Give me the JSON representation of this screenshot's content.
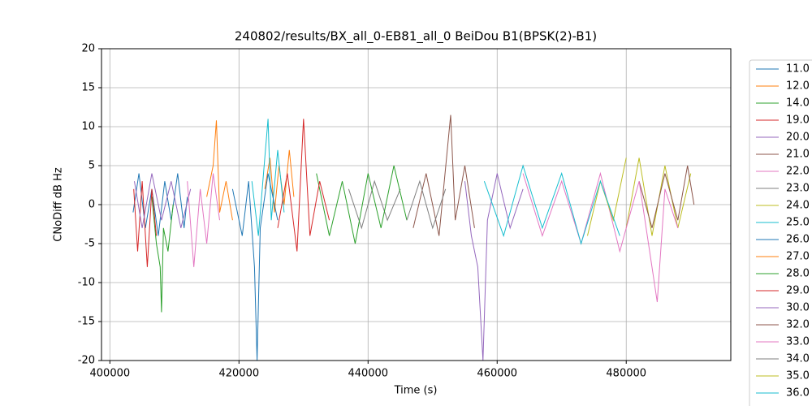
{
  "chart_data": {
    "type": "line",
    "title": "240802/results/BX_all_0-EB81_all_0 BeiDou B1(BPSK(2)-B1)",
    "xlabel": "Time (s)",
    "ylabel": "CNoDiff dB Hz",
    "xlim": [
      398700,
      496200
    ],
    "ylim": [
      -20,
      20
    ],
    "xticks": [
      400000,
      420000,
      440000,
      460000,
      480000
    ],
    "yticks": [
      -20,
      -15,
      -10,
      -5,
      0,
      5,
      10,
      15,
      20
    ],
    "grid": true,
    "legend": "outside-right",
    "series": [
      {
        "name": "11.0",
        "color": "#1f77b4",
        "x": [
          403600,
          404500,
          405500,
          406500,
          407500,
          408500,
          409500,
          410500,
          411500,
          412000
        ],
        "values": [
          -1,
          4,
          -3,
          2,
          -4,
          3,
          -2,
          4,
          -3,
          1
        ]
      },
      {
        "name": "12.0",
        "color": "#ff7f0e",
        "x": [
          424000,
          424800,
          425500,
          426200,
          427000,
          427800,
          428500
        ],
        "values": [
          2,
          6,
          -1,
          5,
          0,
          7,
          1
        ]
      },
      {
        "name": "14.0",
        "color": "#2ca02c",
        "x": [
          406500,
          407200,
          407800,
          408000,
          408300,
          409000,
          409800
        ],
        "values": [
          1,
          -5,
          -8,
          -13.8,
          -3,
          -6,
          0
        ]
      },
      {
        "name": "19.0",
        "color": "#d62728",
        "x": [
          403700,
          404300,
          405000,
          405800,
          406500,
          407200
        ],
        "values": [
          2,
          -6,
          3,
          -8,
          2,
          -4
        ]
      },
      {
        "name": "20.0",
        "color": "#9467bd",
        "x": [
          403800,
          405000,
          406500,
          408000,
          409500,
          411000,
          412500
        ],
        "values": [
          3,
          -3,
          4,
          -2,
          3,
          -3,
          2
        ]
      },
      {
        "name": "21.0",
        "color": "#8c564b",
        "x": [
          447000,
          449000,
          451000,
          452800,
          453500,
          455000,
          456500
        ],
        "values": [
          -3,
          4,
          -4,
          11.5,
          -2,
          5,
          -3
        ]
      },
      {
        "name": "22.0",
        "color": "#e377c2",
        "x": [
          412000,
          413000,
          414000,
          415000,
          416000,
          417000
        ],
        "values": [
          3,
          -8,
          2,
          -5,
          4,
          -2
        ]
      },
      {
        "name": "23.0",
        "color": "#7f7f7f",
        "x": [
          437000,
          439000,
          441000,
          443000,
          445000
        ],
        "values": [
          2,
          -3,
          3,
          -2,
          2
        ]
      },
      {
        "name": "24.0",
        "color": "#bcbd22",
        "x": [
          480000,
          482000,
          484000,
          486000,
          488000,
          490000
        ],
        "values": [
          -3,
          6,
          -4,
          5,
          -3,
          4
        ]
      },
      {
        "name": "25.0",
        "color": "#17becf",
        "x": [
          422000,
          423000,
          424000,
          424500,
          425000,
          426000,
          427000
        ],
        "values": [
          3,
          -4,
          6,
          11,
          -2,
          7,
          -1
        ]
      },
      {
        "name": "26.0",
        "color": "#1f77b4",
        "x": [
          419000,
          420500,
          421500,
          422400,
          422800,
          423300,
          424500,
          426000
        ],
        "values": [
          2,
          -4,
          3,
          -8,
          -20,
          -3,
          4,
          -2
        ]
      },
      {
        "name": "27.0",
        "color": "#ff7f0e",
        "x": [
          415000,
          416000,
          416500,
          417000,
          418000,
          419000
        ],
        "values": [
          1,
          5,
          10.8,
          -1,
          3,
          -2
        ]
      },
      {
        "name": "28.0",
        "color": "#2ca02c",
        "x": [
          432000,
          434000,
          436000,
          438000,
          440000,
          442000,
          444000,
          446000
        ],
        "values": [
          4,
          -4,
          3,
          -5,
          4,
          -3,
          5,
          -2
        ]
      },
      {
        "name": "29.0",
        "color": "#d62728",
        "x": [
          426000,
          427500,
          429000,
          430000,
          431000,
          432500,
          434000
        ],
        "values": [
          -3,
          4,
          -6,
          11,
          -4,
          3,
          -2
        ]
      },
      {
        "name": "30.0",
        "color": "#9467bd",
        "x": [
          455000,
          456000,
          457000,
          457800,
          458500,
          460000,
          462000,
          464000
        ],
        "values": [
          3,
          -4,
          -8,
          -20,
          -2,
          4,
          -3,
          2
        ]
      },
      {
        "name": "32.0",
        "color": "#8c564b",
        "x": [
          482000,
          484000,
          486000,
          488000,
          489500,
          490500
        ],
        "values": [
          3,
          -3,
          4,
          -2,
          5,
          0
        ]
      },
      {
        "name": "33.0",
        "color": "#e377c2",
        "x": [
          464000,
          467000,
          470000,
          473000,
          476000,
          479000,
          482000,
          484800,
          486000,
          488000
        ],
        "values": [
          4,
          -4,
          3,
          -5,
          4,
          -6,
          3,
          -12.5,
          2,
          -3
        ]
      },
      {
        "name": "34.0",
        "color": "#7f7f7f",
        "x": [
          446000,
          448000,
          450000,
          452000
        ],
        "values": [
          -2,
          3,
          -3,
          2
        ]
      },
      {
        "name": "35.0",
        "color": "#bcbd22",
        "x": [
          474000,
          476000,
          478000,
          480000
        ],
        "values": [
          -4,
          3,
          -2,
          6
        ]
      },
      {
        "name": "36.0",
        "color": "#17becf",
        "x": [
          458000,
          461000,
          464000,
          467000,
          470000,
          473000,
          476000,
          479000
        ],
        "values": [
          3,
          -4,
          5,
          -3,
          4,
          -5,
          3,
          -4
        ]
      }
    ]
  }
}
